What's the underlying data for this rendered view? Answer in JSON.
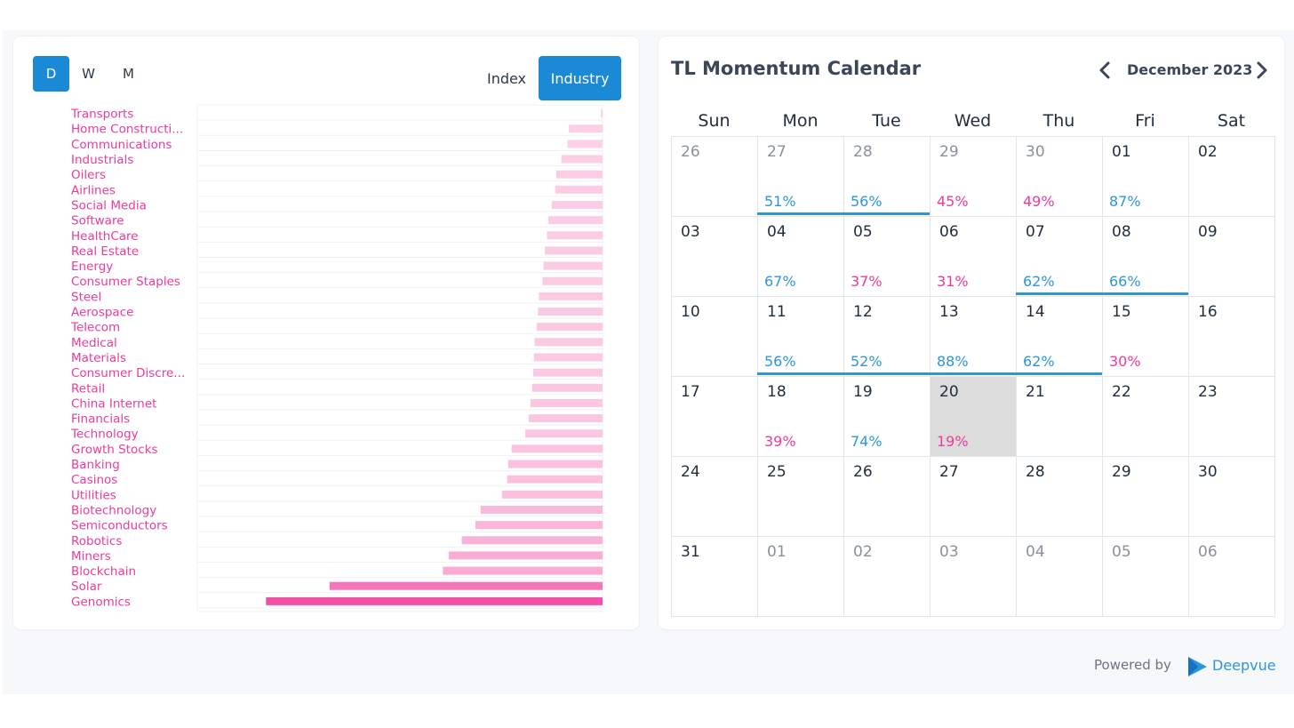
{
  "left_panel": {
    "periods": [
      {
        "label": "D",
        "active": true
      },
      {
        "label": "W",
        "active": false
      },
      {
        "label": "M",
        "active": false
      }
    ],
    "toggles": [
      {
        "label": "Index",
        "active": false
      },
      {
        "label": "Industry",
        "active": true
      }
    ]
  },
  "chart_data": {
    "type": "bar",
    "orientation": "horizontal",
    "categories": [
      "Transports",
      "Home Constructi...",
      "Communications",
      "Industrials",
      "Oilers",
      "Airlines",
      "Social Media",
      "Software",
      "HealthCare",
      "Real Estate",
      "Energy",
      "Consumer Staples",
      "Steel",
      "Aerospace",
      "Telecom",
      "Medical",
      "Materials",
      "Consumer Discre...",
      "Retail",
      "China Internet",
      "Financials",
      "Technology",
      "Growth Stocks",
      "Banking",
      "Casinos",
      "Utilities",
      "Biotechnology",
      "Semiconductors",
      "Robotics",
      "Miners",
      "Blockchain",
      "Solar",
      "Genomics"
    ],
    "values": [
      0.5,
      9.8,
      10.2,
      12.0,
      13.5,
      13.8,
      14.8,
      15.8,
      16.2,
      16.8,
      17.2,
      17.5,
      18.5,
      18.8,
      19.2,
      19.8,
      20.0,
      20.2,
      20.5,
      21.0,
      21.5,
      22.5,
      26.5,
      27.5,
      27.8,
      29.3,
      35.5,
      37.0,
      41.0,
      44.8,
      46.5,
      79.5,
      98.0
    ],
    "xlim": [
      0,
      118
    ],
    "direction": "right-to-left",
    "colors": {
      "light": "#fbd3e7",
      "dark": "#f34fa8",
      "label": "#ea3c9a"
    },
    "grid": true
  },
  "calendar": {
    "title": "TL Momentum Calendar",
    "month": "December 2023",
    "weekdays": [
      "Sun",
      "Mon",
      "Tue",
      "Wed",
      "Thu",
      "Fri",
      "Sat"
    ],
    "weeks": [
      [
        {
          "day": "26",
          "muted": true,
          "pct": "",
          "color": ""
        },
        {
          "day": "27",
          "muted": true,
          "pct": "51%",
          "color": "blue"
        },
        {
          "day": "28",
          "muted": true,
          "pct": "56%",
          "color": "blue"
        },
        {
          "day": "29",
          "muted": true,
          "pct": "45%",
          "color": "pink"
        },
        {
          "day": "30",
          "muted": true,
          "pct": "49%",
          "color": "pink"
        },
        {
          "day": "01",
          "muted": false,
          "pct": "87%",
          "color": "blue"
        },
        {
          "day": "02",
          "muted": false,
          "pct": "",
          "color": ""
        }
      ],
      [
        {
          "day": "03",
          "muted": false,
          "pct": "",
          "color": ""
        },
        {
          "day": "04",
          "muted": false,
          "pct": "67%",
          "color": "blue"
        },
        {
          "day": "05",
          "muted": false,
          "pct": "37%",
          "color": "pink"
        },
        {
          "day": "06",
          "muted": false,
          "pct": "31%",
          "color": "pink"
        },
        {
          "day": "07",
          "muted": false,
          "pct": "62%",
          "color": "blue"
        },
        {
          "day": "08",
          "muted": false,
          "pct": "66%",
          "color": "blue"
        },
        {
          "day": "09",
          "muted": false,
          "pct": "",
          "color": ""
        }
      ],
      [
        {
          "day": "10",
          "muted": false,
          "pct": "",
          "color": ""
        },
        {
          "day": "11",
          "muted": false,
          "pct": "56%",
          "color": "blue"
        },
        {
          "day": "12",
          "muted": false,
          "pct": "52%",
          "color": "blue"
        },
        {
          "day": "13",
          "muted": false,
          "pct": "88%",
          "color": "blue"
        },
        {
          "day": "14",
          "muted": false,
          "pct": "62%",
          "color": "blue"
        },
        {
          "day": "15",
          "muted": false,
          "pct": "30%",
          "color": "pink"
        },
        {
          "day": "16",
          "muted": false,
          "pct": "",
          "color": ""
        }
      ],
      [
        {
          "day": "17",
          "muted": false,
          "pct": "",
          "color": ""
        },
        {
          "day": "18",
          "muted": false,
          "pct": "39%",
          "color": "pink"
        },
        {
          "day": "19",
          "muted": false,
          "pct": "74%",
          "color": "blue"
        },
        {
          "day": "20",
          "muted": false,
          "pct": "19%",
          "color": "pink",
          "today": true
        },
        {
          "day": "21",
          "muted": false,
          "pct": "",
          "color": ""
        },
        {
          "day": "22",
          "muted": false,
          "pct": "",
          "color": ""
        },
        {
          "day": "23",
          "muted": false,
          "pct": "",
          "color": ""
        }
      ],
      [
        {
          "day": "24",
          "muted": false,
          "pct": "",
          "color": ""
        },
        {
          "day": "25",
          "muted": false,
          "pct": "",
          "color": ""
        },
        {
          "day": "26",
          "muted": false,
          "pct": "",
          "color": ""
        },
        {
          "day": "27",
          "muted": false,
          "pct": "",
          "color": ""
        },
        {
          "day": "28",
          "muted": false,
          "pct": "",
          "color": ""
        },
        {
          "day": "29",
          "muted": false,
          "pct": "",
          "color": ""
        },
        {
          "day": "30",
          "muted": false,
          "pct": "",
          "color": ""
        }
      ],
      [
        {
          "day": "31",
          "muted": false,
          "pct": "",
          "color": ""
        },
        {
          "day": "01",
          "muted": true,
          "pct": "",
          "color": ""
        },
        {
          "day": "02",
          "muted": true,
          "pct": "",
          "color": ""
        },
        {
          "day": "03",
          "muted": true,
          "pct": "",
          "color": ""
        },
        {
          "day": "04",
          "muted": true,
          "pct": "",
          "color": ""
        },
        {
          "day": "05",
          "muted": true,
          "pct": "",
          "color": ""
        },
        {
          "day": "06",
          "muted": true,
          "pct": "",
          "color": ""
        }
      ]
    ],
    "streaks": [
      {
        "week": 0,
        "from": 1,
        "to": 2
      },
      {
        "week": 1,
        "from": 4,
        "to": 5
      },
      {
        "week": 2,
        "from": 1,
        "to": 4
      }
    ],
    "colors": {
      "blue": "#2d96d7",
      "pink": "#ea3c9a",
      "today": "#dcdcdc"
    },
    "prev_icon": "chevron-left-icon",
    "next_icon": "chevron-right-icon"
  },
  "footer": {
    "powered_by": "Powered by",
    "brand": "Deepvue",
    "logo_icon": "deepvue-logo-icon"
  }
}
